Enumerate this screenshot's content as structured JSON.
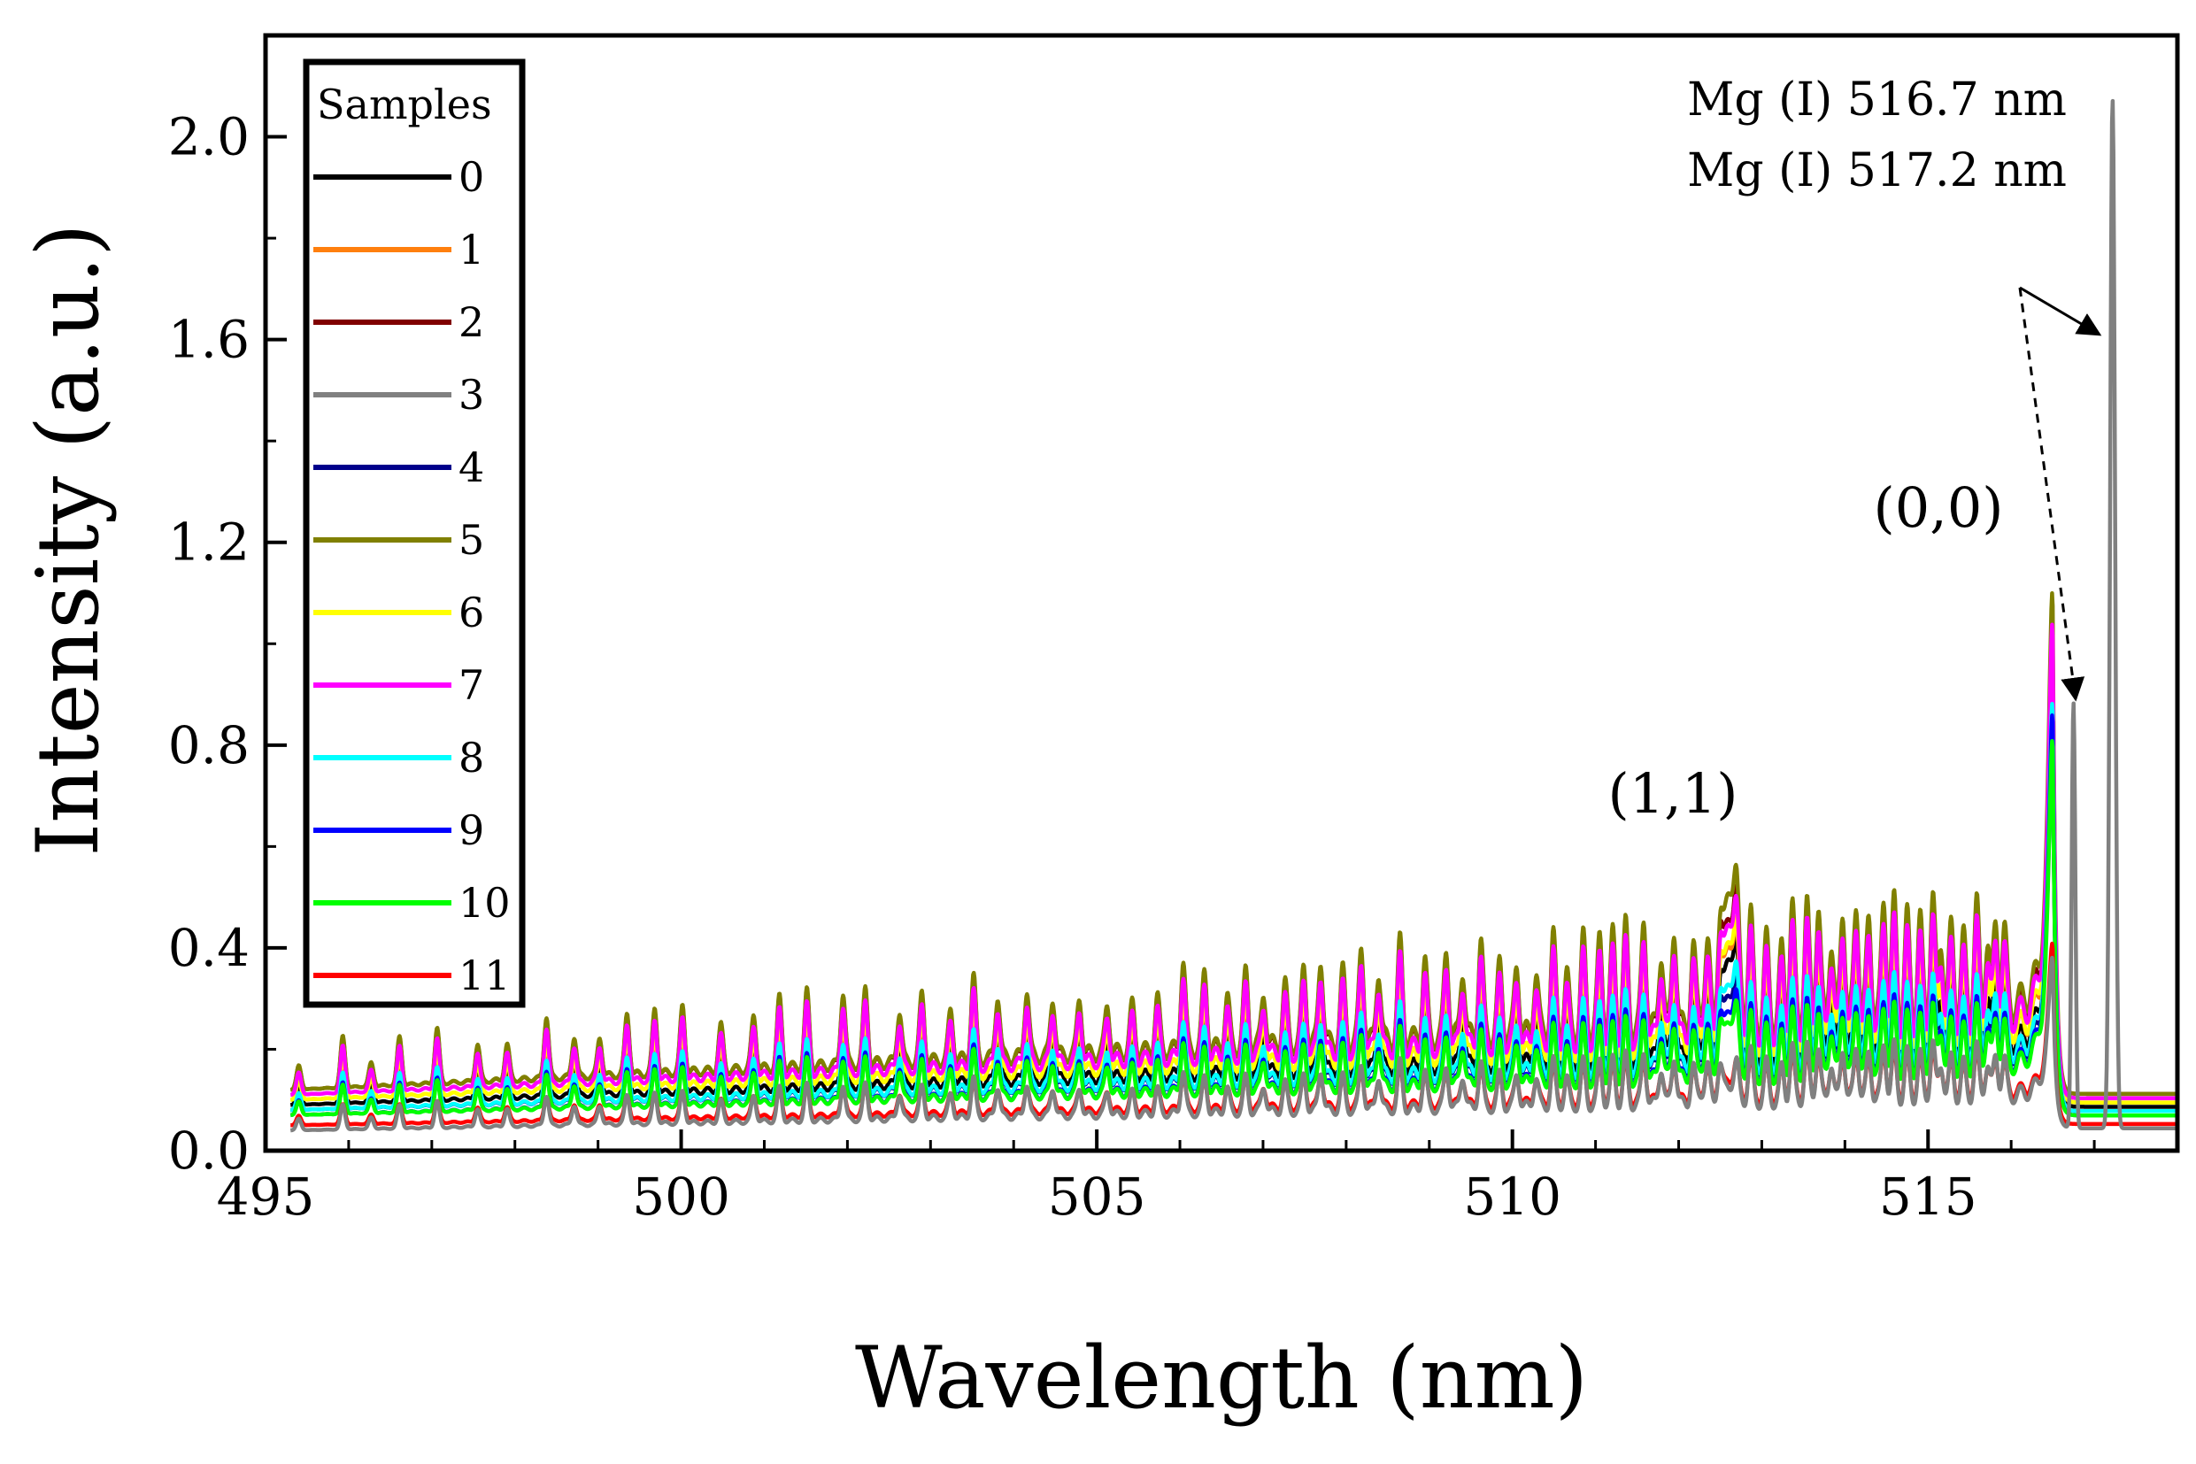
{
  "chart_data": {
    "type": "line",
    "title": "",
    "xlabel": "Wavelength (nm)",
    "ylabel": "Intensity (a.u.)",
    "xlim": [
      495,
      518
    ],
    "ylim": [
      0.0,
      2.2
    ],
    "x_ticks": [
      495,
      500,
      505,
      510,
      515
    ],
    "x_tick_labels": [
      "495",
      "500",
      "505",
      "510",
      "515"
    ],
    "y_ticks": [
      0.0,
      0.4,
      0.8,
      1.2,
      1.6,
      2.0
    ],
    "y_tick_labels": [
      "0.0",
      "0.4",
      "0.8",
      "1.2",
      "1.6",
      "2.0"
    ],
    "grid": false,
    "legend": {
      "title": "Samples",
      "placement": "top-left"
    },
    "series": [
      {
        "name": "0",
        "color": "#000000",
        "baseline": 0.09,
        "bandscale": 0.85,
        "peak11": 0.4,
        "peak00": 0.83,
        "mg1": 0,
        "mg2": 0
      },
      {
        "name": "1",
        "color": "#ff7f0e",
        "baseline": 0.1,
        "bandscale": 0.95,
        "peak11": 0.42,
        "peak00": 0.9,
        "mg1": 0,
        "mg2": 0
      },
      {
        "name": "2",
        "color": "#800000",
        "baseline": 0.12,
        "bandscale": 1.1,
        "peak11": 0.47,
        "peak00": 0.95,
        "mg1": 0,
        "mg2": 0
      },
      {
        "name": "3",
        "color": "#808080",
        "baseline": 0.04,
        "bandscale": 0.55,
        "peak11": 0.15,
        "peak00": 0.37,
        "mg1": 0.84,
        "mg2": 2.03
      },
      {
        "name": "4",
        "color": "#00008b",
        "baseline": 0.08,
        "bandscale": 0.75,
        "peak11": 0.33,
        "peak00": 0.8,
        "mg1": 0,
        "mg2": 0
      },
      {
        "name": "5",
        "color": "#808000",
        "baseline": 0.12,
        "bandscale": 1.15,
        "peak11": 0.52,
        "peak00": 1.08,
        "mg1": 0,
        "mg2": 0
      },
      {
        "name": "6",
        "color": "#ffff00",
        "baseline": 0.1,
        "bandscale": 0.95,
        "peak11": 0.43,
        "peak00": 0.97,
        "mg1": 0,
        "mg2": 0
      },
      {
        "name": "7",
        "color": "#ff00ff",
        "baseline": 0.11,
        "bandscale": 1.05,
        "peak11": 0.46,
        "peak00": 1.02,
        "mg1": 0,
        "mg2": 0
      },
      {
        "name": "8",
        "color": "#00ffff",
        "baseline": 0.08,
        "bandscale": 0.8,
        "peak11": 0.35,
        "peak00": 0.87,
        "mg1": 0,
        "mg2": 0
      },
      {
        "name": "9",
        "color": "#0000ff",
        "baseline": 0.07,
        "bandscale": 0.7,
        "peak11": 0.3,
        "peak00": 0.85,
        "mg1": 0,
        "mg2": 0
      },
      {
        "name": "10",
        "color": "#00ff00",
        "baseline": 0.07,
        "bandscale": 0.65,
        "peak11": 0.28,
        "peak00": 0.8,
        "mg1": 0,
        "mg2": 0
      },
      {
        "name": "11",
        "color": "#ff0000",
        "baseline": 0.05,
        "bandscale": 0.45,
        "peak11": 0.17,
        "peak00": 0.4,
        "mg1": 0,
        "mg2": 0
      }
    ],
    "annotations": [
      {
        "text": "(1,1)",
        "x": 512.6,
        "y": 0.52
      },
      {
        "text": "(0,0)",
        "x": 516.4,
        "y": 1.08
      },
      {
        "text": "Mg (I) 516.7 nm",
        "x": 516.7,
        "y": 0.84
      },
      {
        "text": "Mg (I) 517.2 nm",
        "x": 517.2,
        "y": 2.03
      }
    ]
  }
}
